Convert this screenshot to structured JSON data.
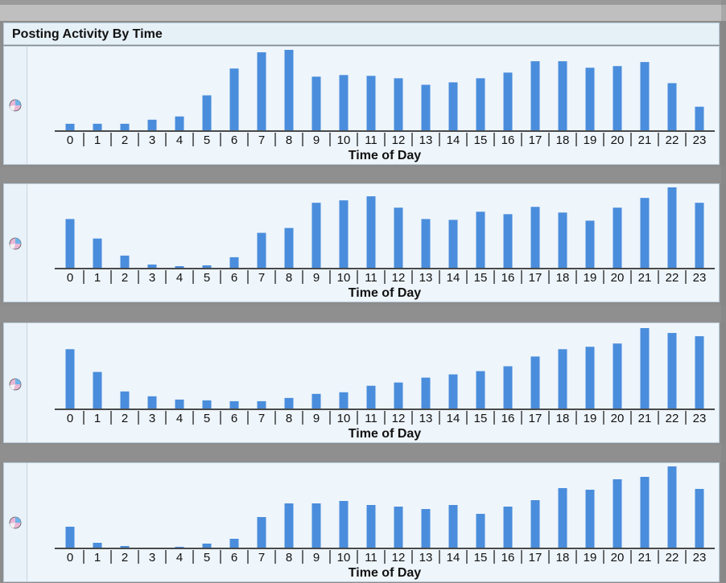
{
  "header": {
    "title": "Posting Activity By Time"
  },
  "icons": {
    "chart_toggle": "pie-chart-icon"
  },
  "colors": {
    "bar": "#4a8ddc",
    "panel_bg": "#eef5fb",
    "header_bg": "#e6f0f7"
  },
  "chart_data": [
    {
      "type": "bar",
      "xlabel": "Time of Day",
      "categories": [
        "0",
        "1",
        "2",
        "3",
        "4",
        "5",
        "6",
        "7",
        "8",
        "9",
        "10",
        "11",
        "12",
        "13",
        "14",
        "15",
        "16",
        "17",
        "18",
        "19",
        "20",
        "21",
        "22",
        "23"
      ],
      "values": [
        8,
        8,
        8,
        13,
        17,
        43,
        76,
        96,
        99,
        66,
        68,
        67,
        64,
        56,
        59,
        64,
        71,
        85,
        85,
        77,
        79,
        84,
        58,
        29
      ]
    },
    {
      "type": "bar",
      "xlabel": "Time of Day",
      "categories": [
        "0",
        "1",
        "2",
        "3",
        "4",
        "5",
        "6",
        "7",
        "8",
        "9",
        "10",
        "11",
        "12",
        "13",
        "14",
        "15",
        "16",
        "17",
        "18",
        "19",
        "20",
        "21",
        "22",
        "23"
      ],
      "values": [
        60,
        36,
        15,
        4,
        2,
        3,
        13,
        43,
        49,
        80,
        83,
        88,
        74,
        60,
        59,
        69,
        66,
        75,
        68,
        58,
        74,
        86,
        99,
        80
      ]
    },
    {
      "type": "bar",
      "xlabel": "Time of Day",
      "categories": [
        "0",
        "1",
        "2",
        "3",
        "4",
        "5",
        "6",
        "7",
        "8",
        "9",
        "10",
        "11",
        "12",
        "13",
        "14",
        "15",
        "16",
        "17",
        "18",
        "19",
        "20",
        "21",
        "22",
        "23"
      ],
      "values": [
        73,
        45,
        21,
        15,
        11,
        10,
        9,
        9,
        13,
        18,
        20,
        28,
        32,
        38,
        42,
        46,
        52,
        64,
        73,
        76,
        80,
        99,
        93,
        89
      ]
    },
    {
      "type": "bar",
      "xlabel": "Time of Day",
      "categories": [
        "0",
        "1",
        "2",
        "3",
        "4",
        "5",
        "6",
        "7",
        "8",
        "9",
        "10",
        "11",
        "12",
        "13",
        "14",
        "15",
        "16",
        "17",
        "18",
        "19",
        "20",
        "21",
        "22",
        "23"
      ],
      "values": [
        26,
        6,
        2,
        0,
        1,
        5,
        11,
        38,
        55,
        55,
        58,
        53,
        51,
        48,
        53,
        42,
        51,
        59,
        74,
        72,
        85,
        88,
        101,
        73
      ]
    }
  ]
}
